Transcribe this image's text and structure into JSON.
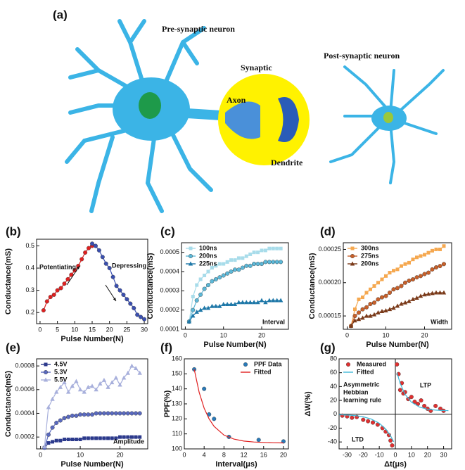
{
  "figure": {
    "panels": [
      "(a)",
      "(b)",
      "(c)",
      "(d)",
      "(e)",
      "(f)",
      "(g)"
    ],
    "diagram": {
      "pre": "Pre-synaptic neuron",
      "post": "Post-synaptic neuron",
      "synaptic": "Synaptic",
      "axon": "Axon",
      "dendrite": "Dendrite"
    }
  },
  "chart_data": [
    {
      "type": "line",
      "xlabel": "Pulse Number(N)",
      "ylabel": "Conductance(mS)",
      "xlim": [
        -1,
        31
      ],
      "xticks": [
        0,
        5,
        10,
        15,
        20,
        25,
        30
      ],
      "ylim": [
        0.15,
        0.53
      ],
      "yticks": [
        0.2,
        0.3,
        0.4,
        0.5
      ],
      "annotations": [
        "Potentiating",
        "Depressing"
      ],
      "series": [
        {
          "color": "#e02020",
          "marker": "circle",
          "x": [
            1,
            2,
            3,
            4,
            5,
            6,
            7,
            8,
            9,
            10,
            11,
            12,
            13,
            14,
            15
          ],
          "values": [
            0.21,
            0.25,
            0.27,
            0.28,
            0.3,
            0.31,
            0.33,
            0.35,
            0.37,
            0.39,
            0.41,
            0.44,
            0.47,
            0.49,
            0.5
          ]
        },
        {
          "color": "#3a4fb0",
          "marker": "circle",
          "x": [
            15,
            16,
            17,
            18,
            19,
            20,
            21,
            22,
            23,
            24,
            25,
            26,
            27,
            28,
            29,
            30
          ],
          "values": [
            0.51,
            0.5,
            0.48,
            0.45,
            0.42,
            0.4,
            0.36,
            0.32,
            0.3,
            0.28,
            0.26,
            0.24,
            0.22,
            0.19,
            0.18,
            0.17
          ]
        }
      ]
    },
    {
      "type": "line",
      "xlabel": "Pulse Number(N)",
      "ylabel": "Conductance(mS)",
      "legend": "upper left",
      "xlim": [
        -1,
        27
      ],
      "xticks": [
        0,
        10,
        20
      ],
      "ylim": [
        0.0001,
        0.00055
      ],
      "yticks": [
        0.0001,
        0.0002,
        0.0003,
        0.0004,
        0.0005
      ],
      "annotations": [
        "Interval"
      ],
      "x": [
        1,
        2,
        3,
        4,
        5,
        6,
        7,
        8,
        9,
        10,
        11,
        12,
        13,
        14,
        15,
        16,
        17,
        18,
        19,
        20,
        21,
        22,
        23,
        24,
        25
      ],
      "series": [
        {
          "name": "100ns",
          "color": "#a8dcea",
          "marker": "square",
          "values": [
            0.00014,
            0.00027,
            0.00033,
            0.00036,
            0.00038,
            0.0004,
            0.00042,
            0.00043,
            0.00044,
            0.00044,
            0.00045,
            0.00046,
            0.00046,
            0.00047,
            0.00047,
            0.00048,
            0.00049,
            0.0005,
            0.0005,
            0.00051,
            0.00051,
            0.00052,
            0.00052,
            0.00052,
            0.00052
          ]
        },
        {
          "name": "200ns",
          "color": "#5cb8d8",
          "marker": "circle",
          "values": [
            0.00014,
            0.0002,
            0.00025,
            0.00028,
            0.00031,
            0.00033,
            0.00035,
            0.00036,
            0.00037,
            0.00038,
            0.00039,
            0.0004,
            0.00041,
            0.00041,
            0.00042,
            0.00043,
            0.00043,
            0.00044,
            0.00044,
            0.00044,
            0.00045,
            0.00045,
            0.00045,
            0.00045,
            0.00045
          ]
        },
        {
          "name": "225ns",
          "color": "#1f78a8",
          "marker": "triangle",
          "values": [
            0.00014,
            0.00017,
            0.00019,
            0.0002,
            0.00021,
            0.00021,
            0.00022,
            0.00022,
            0.00022,
            0.00023,
            0.00023,
            0.00023,
            0.00023,
            0.00024,
            0.00024,
            0.00024,
            0.00024,
            0.00024,
            0.00024,
            0.00025,
            0.00024,
            0.00025,
            0.00025,
            0.00025,
            0.00025
          ]
        }
      ]
    },
    {
      "type": "line",
      "xlabel": "Pulse Number(N)",
      "ylabel": "Conductance(mS)",
      "legend": "upper left",
      "xlim": [
        -1,
        27
      ],
      "xticks": [
        0,
        10,
        20
      ],
      "ylim": [
        0.00013,
        0.00026
      ],
      "yticks": [
        0.00015,
        {
          "value": 0.0002,
          "label": "0.00020"
        },
        0.00025
      ],
      "annotations": [
        "Width"
      ],
      "x": [
        1,
        2,
        3,
        4,
        5,
        6,
        7,
        8,
        9,
        10,
        11,
        12,
        13,
        14,
        15,
        16,
        17,
        18,
        19,
        20,
        21,
        22,
        23,
        24,
        25
      ],
      "series": [
        {
          "name": "300ns",
          "color": "#f5a850",
          "marker": "square",
          "values": [
            0.000135,
            0.00016,
            0.000175,
            0.000178,
            0.000185,
            0.00019,
            0.000195,
            0.0002,
            0.000205,
            0.00021,
            0.000215,
            0.000218,
            0.00022,
            0.000225,
            0.000228,
            0.00023,
            0.000235,
            0.000238,
            0.00024,
            0.000242,
            0.000245,
            0.000248,
            0.00025,
            0.00025,
            0.000255
          ]
        },
        {
          "name": "275ns",
          "color": "#c8602a",
          "marker": "circle",
          "values": [
            0.000135,
            0.00015,
            0.000155,
            0.00016,
            0.000163,
            0.000168,
            0.00017,
            0.000175,
            0.000178,
            0.00018,
            0.000185,
            0.00019,
            0.000192,
            0.000195,
            0.0002,
            0.000203,
            0.000205,
            0.000208,
            0.00021,
            0.000213,
            0.000215,
            0.00022,
            0.000223,
            0.000225,
            0.000228
          ]
        },
        {
          "name": "200ns",
          "color": "#7a3a1a",
          "marker": "triangle",
          "values": [
            0.000135,
            0.000143,
            0.000145,
            0.000147,
            0.00015,
            0.00015,
            0.000152,
            0.000155,
            0.000157,
            0.000158,
            0.00016,
            0.000162,
            0.000165,
            0.000168,
            0.00017,
            0.000172,
            0.000175,
            0.000177,
            0.00018,
            0.000182,
            0.000183,
            0.000184,
            0.000185,
            0.000185,
            0.000185
          ]
        }
      ]
    },
    {
      "type": "line",
      "xlabel": "Pulse Number(N)",
      "ylabel": "Conductance(mS)",
      "legend": "upper left",
      "xlim": [
        -1,
        27
      ],
      "xticks": [
        0,
        10,
        20
      ],
      "ylim": [
        0.0001,
        0.00086
      ],
      "yticks": [
        0.0002,
        0.0004,
        0.0006,
        0.0008
      ],
      "annotations": [
        "Amplitude"
      ],
      "x": [
        1,
        2,
        3,
        4,
        5,
        6,
        7,
        8,
        9,
        10,
        11,
        12,
        13,
        14,
        15,
        16,
        17,
        18,
        19,
        20,
        21,
        22,
        23,
        24,
        25
      ],
      "series": [
        {
          "name": "4.5V",
          "color": "#2c3a8c",
          "marker": "square",
          "values": [
            0.00011,
            0.00015,
            0.00016,
            0.00017,
            0.00017,
            0.00018,
            0.00018,
            0.00018,
            0.00018,
            0.00018,
            0.00019,
            0.00019,
            0.00019,
            0.00019,
            0.00019,
            0.00019,
            0.00019,
            0.00019,
            0.00019,
            0.0002,
            0.0002,
            0.0002,
            0.0002,
            0.0002,
            0.0002
          ]
        },
        {
          "name": "5.3V",
          "color": "#5a6ac0",
          "marker": "circle",
          "values": [
            0.00011,
            0.00022,
            0.00028,
            0.00032,
            0.00034,
            0.00036,
            0.00037,
            0.00038,
            0.00038,
            0.00039,
            0.00039,
            0.00039,
            0.00039,
            0.0004,
            0.0004,
            0.0004,
            0.0004,
            0.0004,
            0.0004,
            0.0004,
            0.0004,
            0.0004,
            0.0004,
            0.0004,
            0.0004
          ]
        },
        {
          "name": "5.5V",
          "color": "#a8b0dc",
          "marker": "triangle",
          "values": [
            0.00012,
            0.00045,
            0.00052,
            0.00058,
            0.00062,
            0.00066,
            0.00058,
            0.00063,
            0.00067,
            0.0006,
            0.00058,
            0.00062,
            0.00063,
            0.0006,
            0.00065,
            0.00068,
            0.00062,
            0.00066,
            0.0007,
            0.00064,
            0.0007,
            0.00074,
            0.0008,
            0.00078,
            0.00074
          ]
        }
      ]
    },
    {
      "type": "scatter",
      "xlabel": "Interval(μs)",
      "ylabel": "PPF(%)",
      "legend": "upper right",
      "xlim": [
        0,
        21
      ],
      "xticks": [
        0,
        4,
        8,
        12,
        16,
        20
      ],
      "ylim": [
        100,
        160
      ],
      "yticks": [
        100,
        110,
        120,
        130,
        140,
        150,
        160
      ],
      "series": [
        {
          "name": "PPF Data",
          "type": "scatter",
          "color": "#2a7ab8",
          "marker": "circle",
          "x": [
            2,
            4,
            5,
            6,
            9,
            15,
            20
          ],
          "values": [
            153,
            140,
            123,
            120,
            108,
            106,
            105
          ]
        },
        {
          "name": "Fitted",
          "type": "line",
          "color": "#e02020",
          "x": [
            2,
            3,
            4,
            5,
            6,
            8,
            10,
            12,
            14,
            16,
            18,
            20
          ],
          "values": [
            153,
            137.7,
            127.1,
            120,
            115,
            109.2,
            106.5,
            105.2,
            104.6,
            104.3,
            104.1,
            104
          ]
        }
      ]
    },
    {
      "type": "scatter",
      "xlabel": "Δt(μs)",
      "ylabel": "ΔW(%)",
      "legend": "upper left",
      "cross_axes": true,
      "xlim": [
        -35,
        35
      ],
      "xticks": [
        -30,
        -20,
        -10,
        0,
        10,
        20,
        30
      ],
      "ylim": [
        -50,
        80
      ],
      "yticks": [
        -40,
        -20,
        0,
        20,
        40,
        60,
        80
      ],
      "annotations": [
        "LTP",
        "LTD",
        "Asymmetric",
        "Hebbian",
        "learning rule"
      ],
      "series": [
        {
          "name": "Measured",
          "type": "scatter",
          "color": "#e03030",
          "marker": "circle",
          "x": [
            1,
            2,
            3,
            4,
            5,
            6,
            8,
            10,
            12,
            14,
            16,
            18,
            20,
            22,
            25,
            28,
            30,
            -33,
            -30,
            -27,
            -24,
            -20,
            -17,
            -14,
            -11,
            -8,
            -6,
            -4,
            -3,
            -2
          ],
          "values": [
            72,
            58,
            35,
            45,
            30,
            32,
            22,
            25,
            18,
            15,
            20,
            12,
            8,
            5,
            12,
            8,
            5,
            -2,
            -3,
            -5,
            -4,
            -8,
            -10,
            -12,
            -15,
            -20,
            -25,
            -30,
            -38,
            -45
          ]
        },
        {
          "name": "Fitted",
          "type": "line",
          "color": "#40b8d8",
          "x": [
            -35,
            -30,
            -25,
            -20,
            -15,
            -10,
            -6,
            -3,
            -1,
            null,
            1,
            3,
            6,
            10,
            15,
            20,
            25,
            30,
            33
          ],
          "values": [
            -0.6,
            -1.1,
            -2.0,
            -3.7,
            -6.9,
            -12.9,
            -21.3,
            -30.9,
            -39.7,
            null,
            60,
            44.4,
            28.9,
            17.3,
            10.3,
            7.3,
            6,
            5.4,
            5.3
          ]
        }
      ]
    }
  ]
}
